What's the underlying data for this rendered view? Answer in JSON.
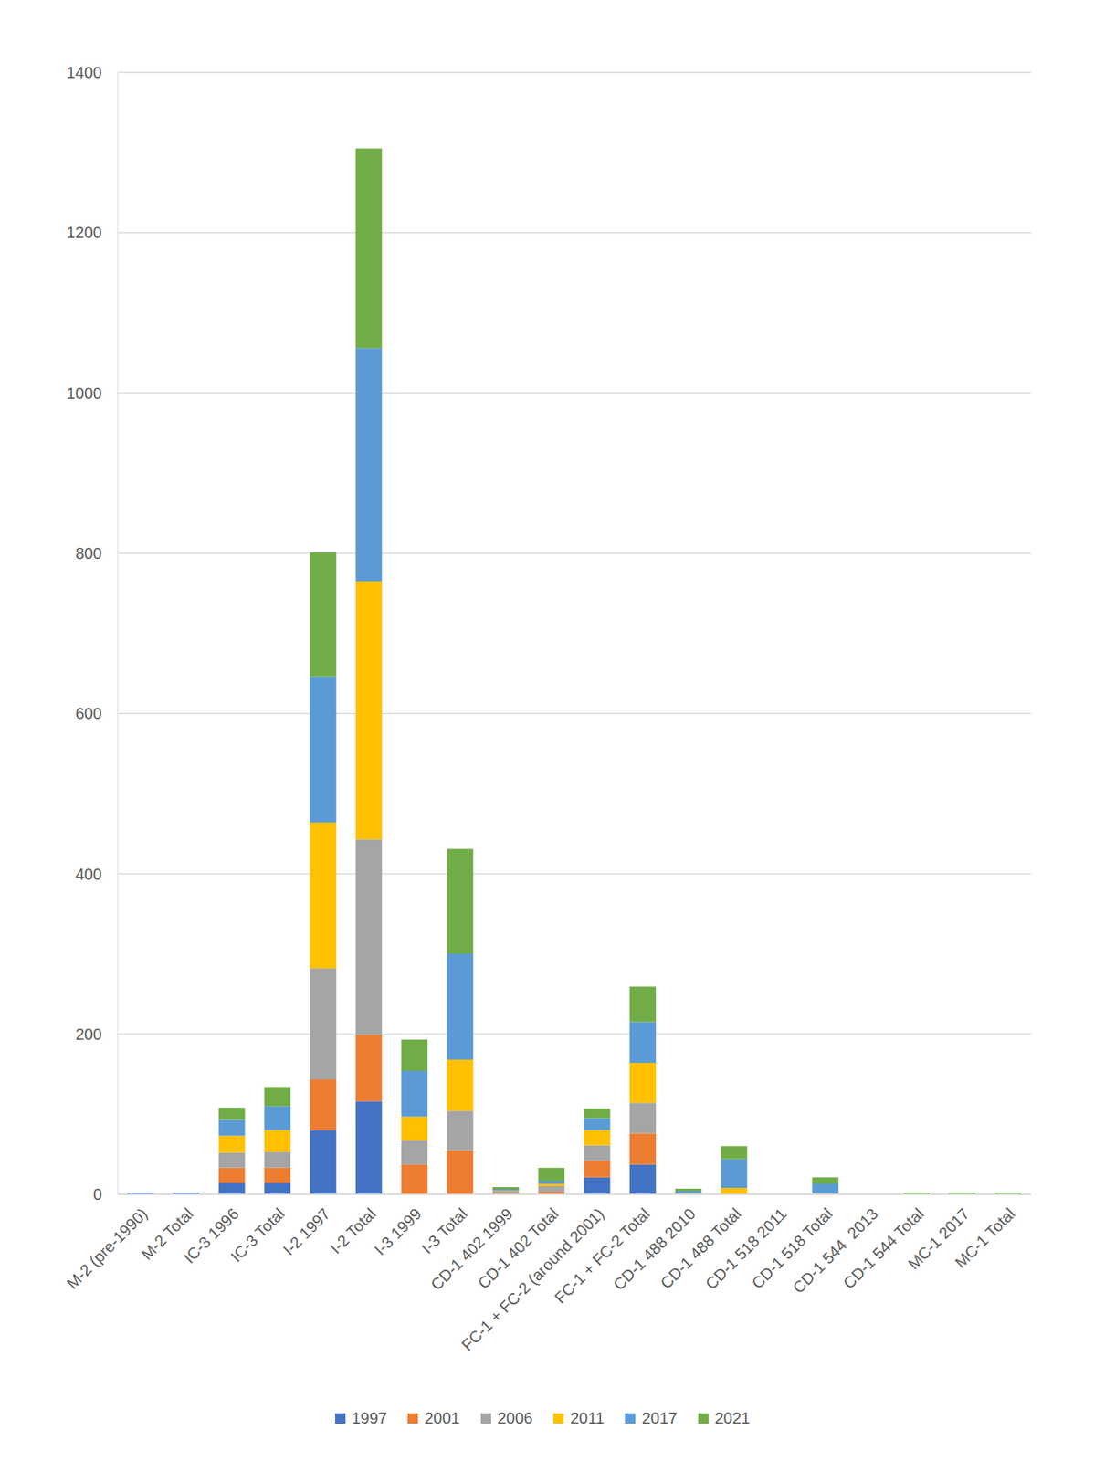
{
  "chart_data": {
    "type": "bar",
    "stacked": true,
    "grid": true,
    "legend": "bottom",
    "categories": [
      "M-2 (pre-1990)",
      "M-2 Total",
      "IC-3 1996",
      "IC-3 Total",
      "I-2 1997",
      "I-2 Total",
      "I-3 1999",
      "I-3 Total",
      "CD-1 402 1999",
      "CD-1 402 Total",
      "FC-1 + FC-2 (around 2001)",
      "FC-1 + FC-2 Total",
      "CD-1 488 2010",
      "CD-1 488 Total",
      "CD-1 518 2011",
      "CD-1 518 Total",
      "CD-1 544  2013",
      "CD-1 544 Total",
      "MC-1 2017",
      "MC-1 Total"
    ],
    "series": [
      {
        "name": "1997",
        "color": "#4472c4",
        "values": [
          2,
          2,
          14,
          14,
          80,
          116,
          0,
          0,
          0,
          0,
          21,
          37,
          0,
          0,
          0,
          0,
          0,
          0,
          0,
          0
        ]
      },
      {
        "name": "2001",
        "color": "#ed7d31",
        "values": [
          0,
          0,
          19,
          19,
          63,
          83,
          37,
          55,
          1,
          3,
          21,
          39,
          0,
          0,
          0,
          0,
          0,
          0,
          0,
          0
        ]
      },
      {
        "name": "2006",
        "color": "#a5a5a5",
        "values": [
          0,
          0,
          19,
          20,
          139,
          244,
          30,
          49,
          3,
          7,
          19,
          38,
          0,
          0,
          0,
          0,
          0,
          0,
          0,
          0
        ]
      },
      {
        "name": "2011",
        "color": "#ffc000",
        "values": [
          0,
          0,
          21,
          27,
          182,
          322,
          30,
          64,
          1,
          3,
          19,
          50,
          1,
          8,
          0,
          1,
          0,
          0,
          0,
          0
        ]
      },
      {
        "name": "2017",
        "color": "#5b9bd5",
        "values": [
          0,
          0,
          20,
          30,
          182,
          291,
          57,
          132,
          2,
          4,
          15,
          51,
          3,
          36,
          0,
          12,
          0,
          0,
          0,
          0
        ]
      },
      {
        "name": "2021",
        "color": "#70ad47",
        "values": [
          0,
          0,
          15,
          24,
          155,
          249,
          39,
          131,
          2,
          16,
          12,
          44,
          3,
          16,
          0,
          8,
          0,
          2,
          2,
          2
        ]
      }
    ],
    "ylim": [
      0,
      1400
    ],
    "yticks": [
      0,
      200,
      400,
      600,
      800,
      1000,
      1200,
      1400
    ]
  }
}
